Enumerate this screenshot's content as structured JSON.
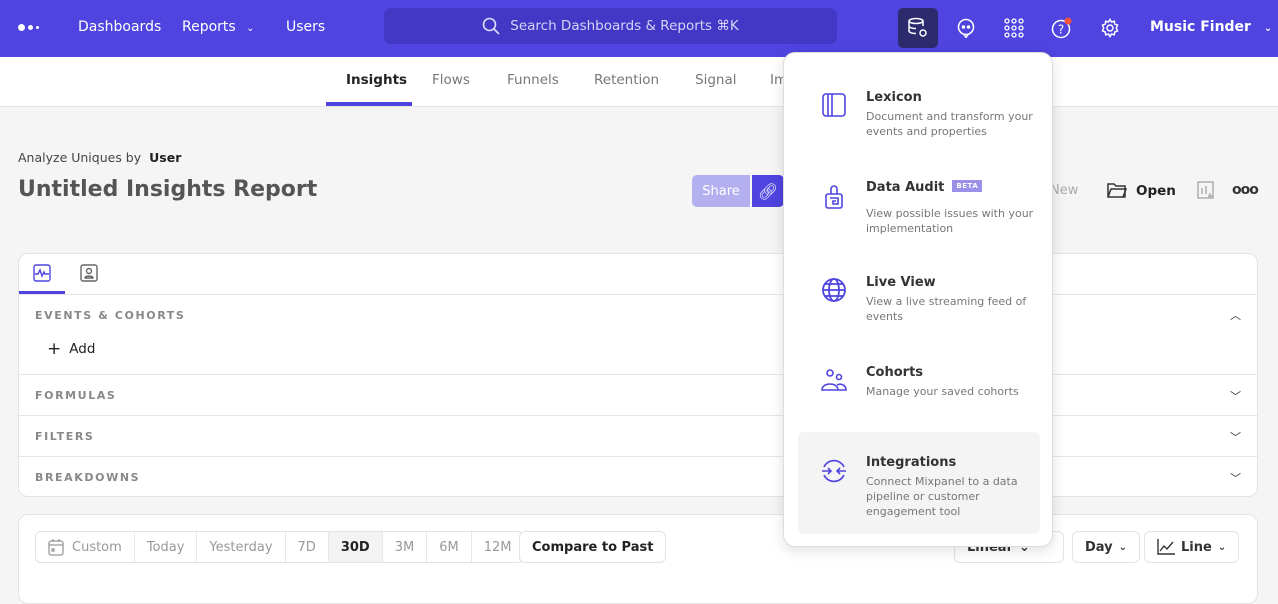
{
  "nav": {
    "logo": "mixpanel-dots-logo",
    "links": [
      "Dashboards",
      "Reports",
      "Users"
    ],
    "search_placeholder": "Search Dashboards & Reports ⌘K",
    "project": "Music Finder",
    "accent": "#4f44e0"
  },
  "subnav": {
    "tabs": [
      "Insights",
      "Flows",
      "Funnels",
      "Retention",
      "Signal",
      "Impact"
    ],
    "active": "Insights"
  },
  "report": {
    "analyze_label": "Analyze Uniques by",
    "analyze_value": "User",
    "title": "Untitled Insights Report",
    "share": "Share",
    "new": "New",
    "open": "Open"
  },
  "query": {
    "sections": [
      "EVENTS & COHORTS",
      "FORMULAS",
      "FILTERS",
      "BREAKDOWNS"
    ],
    "add": "Add"
  },
  "toolbar": {
    "ranges": [
      "Custom",
      "Today",
      "Yesterday",
      "7D",
      "30D",
      "3M",
      "6M",
      "12M"
    ],
    "active_range": "30D",
    "compare": "Compare to Past",
    "scale": "Linear",
    "interval": "Day",
    "chart_type": "Line"
  },
  "dropdown": {
    "items": [
      {
        "title": "Lexicon",
        "desc": "Document and transform your events and properties",
        "icon": "book-icon"
      },
      {
        "title": "Data Audit",
        "badge": "BETA",
        "desc": "View possible issues with your implementation",
        "icon": "audit-icon"
      },
      {
        "title": "Live View",
        "desc": "View a live streaming feed of events",
        "icon": "globe-icon"
      },
      {
        "title": "Cohorts",
        "desc": "Manage your saved cohorts",
        "icon": "users-icon"
      },
      {
        "title": "Integrations",
        "desc": "Connect Mixpanel to a data pipeline or customer engagement tool",
        "icon": "integrations-icon"
      }
    ]
  }
}
